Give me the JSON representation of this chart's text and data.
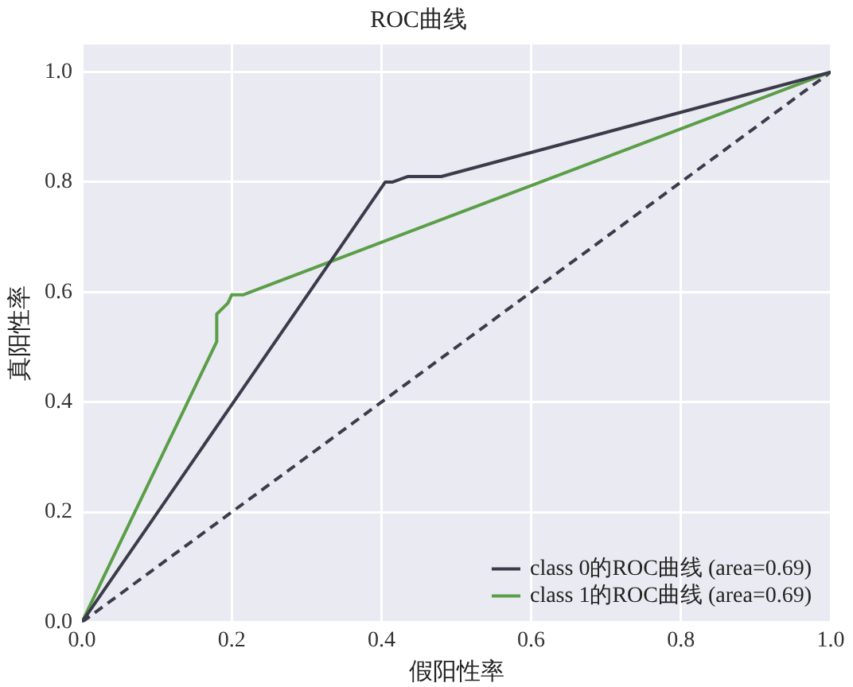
{
  "chart_data": {
    "type": "line",
    "title": "ROC曲线",
    "xlabel": "假阳性率",
    "ylabel": "真阳性率",
    "series": [
      {
        "name": "class 0的ROC曲线 (area=0.69)",
        "color": "#3b3b4b",
        "x": [
          0,
          0.4,
          0.405,
          0.415,
          0.435,
          0.48,
          1
        ],
        "values": [
          0,
          0.79,
          0.8,
          0.8,
          0.81,
          0.81,
          1
        ]
      },
      {
        "name": "class 1的ROC曲线 (area=0.69)",
        "color": "#5a9e48",
        "x": [
          0,
          0.18,
          0.18,
          0.195,
          0.2,
          0.215,
          1
        ],
        "values": [
          0,
          0.51,
          0.56,
          0.58,
          0.595,
          0.595,
          1
        ]
      },
      {
        "color": "#3b3b4b",
        "x": [
          0,
          1
        ],
        "values": [
          0,
          1
        ],
        "line_style": "dashed"
      }
    ],
    "xlim": [
      0,
      1
    ],
    "ylim": [
      0,
      1.05
    ],
    "xticks": [
      {
        "value": 0,
        "label": "0.0"
      },
      0.2,
      0.4,
      0.6,
      0.8,
      {
        "value": 1,
        "label": "1.0"
      }
    ],
    "yticks": [
      {
        "value": 0,
        "label": "0.0"
      },
      0.2,
      0.4,
      0.6,
      0.8,
      {
        "value": 1,
        "label": "1.0"
      }
    ],
    "grid": true,
    "legend": "bottom right",
    "marker": "none",
    "line_style": "solid"
  }
}
